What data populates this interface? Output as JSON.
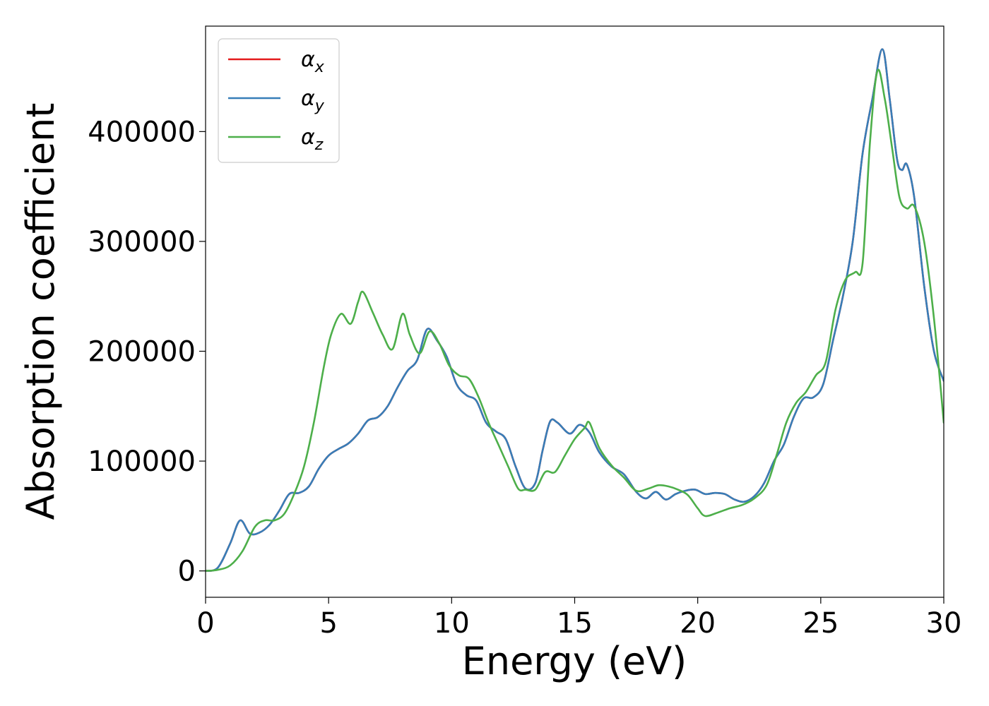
{
  "chart_data": {
    "type": "line",
    "xlabel": "Energy (eV)",
    "ylabel": "Absorption coefficient",
    "xlim": [
      0,
      30
    ],
    "ylim": [
      -24000,
      496000
    ],
    "xticks": [
      0,
      5,
      10,
      15,
      20,
      25,
      30
    ],
    "yticks": [
      0,
      100000,
      200000,
      300000,
      400000
    ],
    "grid": false,
    "legend_position": "top-left",
    "series": [
      {
        "name": "αx",
        "base": "α",
        "sub": "x",
        "color": "#e41a1c",
        "x": [
          0,
          0.5,
          1.0,
          1.4,
          1.8,
          2.2,
          2.6,
          3.0,
          3.4,
          3.8,
          4.2,
          4.6,
          5.0,
          5.4,
          5.8,
          6.2,
          6.6,
          7.0,
          7.4,
          7.8,
          8.2,
          8.6,
          9.0,
          9.4,
          9.8,
          10.2,
          10.6,
          11.0,
          11.4,
          11.8,
          12.2,
          12.6,
          13.0,
          13.4,
          13.7,
          14.0,
          14.3,
          14.8,
          15.2,
          15.6,
          16.0,
          16.5,
          17.0,
          17.5,
          17.9,
          18.3,
          18.7,
          19.1,
          19.5,
          19.9,
          20.3,
          20.7,
          21.1,
          21.5,
          21.9,
          22.3,
          22.7,
          23.1,
          23.5,
          23.9,
          24.3,
          24.7,
          25.1,
          25.5,
          25.9,
          26.3,
          26.7,
          27.1,
          27.5,
          27.8,
          28.1,
          28.3,
          28.5,
          28.8,
          29.2,
          29.6,
          30.0
        ],
        "y": [
          0,
          3000,
          25000,
          46000,
          34000,
          35000,
          42000,
          55000,
          70000,
          71000,
          77000,
          93000,
          105000,
          111000,
          116000,
          125000,
          137000,
          140000,
          150000,
          167000,
          182000,
          192000,
          220000,
          210000,
          195000,
          170000,
          160000,
          155000,
          135000,
          127000,
          120000,
          95000,
          75000,
          80000,
          110000,
          136000,
          135000,
          125000,
          133000,
          126000,
          108000,
          95000,
          88000,
          72000,
          66000,
          72000,
          65000,
          70000,
          73000,
          74000,
          70000,
          71000,
          70000,
          65000,
          63000,
          68000,
          80000,
          100000,
          115000,
          140000,
          157000,
          158000,
          170000,
          210000,
          250000,
          300000,
          380000,
          430000,
          475000,
          430000,
          375000,
          365000,
          370000,
          340000,
          260000,
          200000,
          173000
        ]
      },
      {
        "name": "αy",
        "base": "α",
        "sub": "y",
        "color": "#377eb8",
        "x": [
          0,
          0.5,
          1.0,
          1.4,
          1.8,
          2.2,
          2.6,
          3.0,
          3.4,
          3.8,
          4.2,
          4.6,
          5.0,
          5.4,
          5.8,
          6.2,
          6.6,
          7.0,
          7.4,
          7.8,
          8.2,
          8.6,
          9.0,
          9.4,
          9.8,
          10.2,
          10.6,
          11.0,
          11.4,
          11.8,
          12.2,
          12.6,
          13.0,
          13.4,
          13.7,
          14.0,
          14.3,
          14.8,
          15.2,
          15.6,
          16.0,
          16.5,
          17.0,
          17.5,
          17.9,
          18.3,
          18.7,
          19.1,
          19.5,
          19.9,
          20.3,
          20.7,
          21.1,
          21.5,
          21.9,
          22.3,
          22.7,
          23.1,
          23.5,
          23.9,
          24.3,
          24.7,
          25.1,
          25.5,
          25.9,
          26.3,
          26.7,
          27.1,
          27.5,
          27.8,
          28.1,
          28.3,
          28.5,
          28.8,
          29.2,
          29.6,
          30.0
        ],
        "y": [
          0,
          3000,
          25000,
          46000,
          34000,
          35000,
          42000,
          55000,
          70000,
          71000,
          77000,
          93000,
          105000,
          111000,
          116000,
          125000,
          137000,
          140000,
          150000,
          167000,
          182000,
          192000,
          220000,
          210000,
          195000,
          170000,
          160000,
          155000,
          135000,
          127000,
          120000,
          95000,
          75000,
          80000,
          110000,
          136000,
          135000,
          125000,
          133000,
          126000,
          108000,
          95000,
          88000,
          72000,
          66000,
          72000,
          65000,
          70000,
          73000,
          74000,
          70000,
          71000,
          70000,
          65000,
          63000,
          68000,
          80000,
          100000,
          115000,
          140000,
          157000,
          158000,
          170000,
          210000,
          250000,
          300000,
          380000,
          430000,
          475000,
          430000,
          375000,
          365000,
          370000,
          340000,
          260000,
          200000,
          173000
        ]
      },
      {
        "name": "αz",
        "base": "α",
        "sub": "z",
        "color": "#4daf4a",
        "x": [
          0,
          0.5,
          1.0,
          1.5,
          2.0,
          2.4,
          2.8,
          3.2,
          3.6,
          4.0,
          4.4,
          4.8,
          5.1,
          5.5,
          5.9,
          6.2,
          6.4,
          6.8,
          7.2,
          7.6,
          8.0,
          8.3,
          8.7,
          9.1,
          9.5,
          9.9,
          10.3,
          10.7,
          11.1,
          11.5,
          11.9,
          12.3,
          12.7,
          13.0,
          13.4,
          13.8,
          14.2,
          14.6,
          15.0,
          15.4,
          15.6,
          16.0,
          16.5,
          17.0,
          17.5,
          18.0,
          18.4,
          18.8,
          19.2,
          19.6,
          20.0,
          20.3,
          20.8,
          21.3,
          21.8,
          22.3,
          22.8,
          23.2,
          23.6,
          24.0,
          24.4,
          24.8,
          25.2,
          25.6,
          26.0,
          26.4,
          26.7,
          27.0,
          27.3,
          27.6,
          27.9,
          28.2,
          28.5,
          28.8,
          29.2,
          29.6,
          30.0
        ],
        "y": [
          0,
          1000,
          5000,
          18000,
          40000,
          46000,
          46000,
          52000,
          70000,
          95000,
          135000,
          185000,
          215000,
          234000,
          225000,
          245000,
          254000,
          235000,
          215000,
          202000,
          234000,
          215000,
          198000,
          218000,
          207000,
          187000,
          178000,
          175000,
          158000,
          135000,
          115000,
          95000,
          75000,
          74000,
          74000,
          90000,
          90000,
          105000,
          120000,
          130000,
          135000,
          112000,
          96000,
          85000,
          73000,
          75000,
          78000,
          77000,
          74000,
          69000,
          57000,
          50000,
          53000,
          57000,
          60000,
          66000,
          78000,
          105000,
          135000,
          153000,
          163000,
          178000,
          190000,
          238000,
          265000,
          272000,
          280000,
          390000,
          455000,
          430000,
          385000,
          340000,
          330000,
          332000,
          300000,
          230000,
          135000
        ]
      }
    ]
  }
}
